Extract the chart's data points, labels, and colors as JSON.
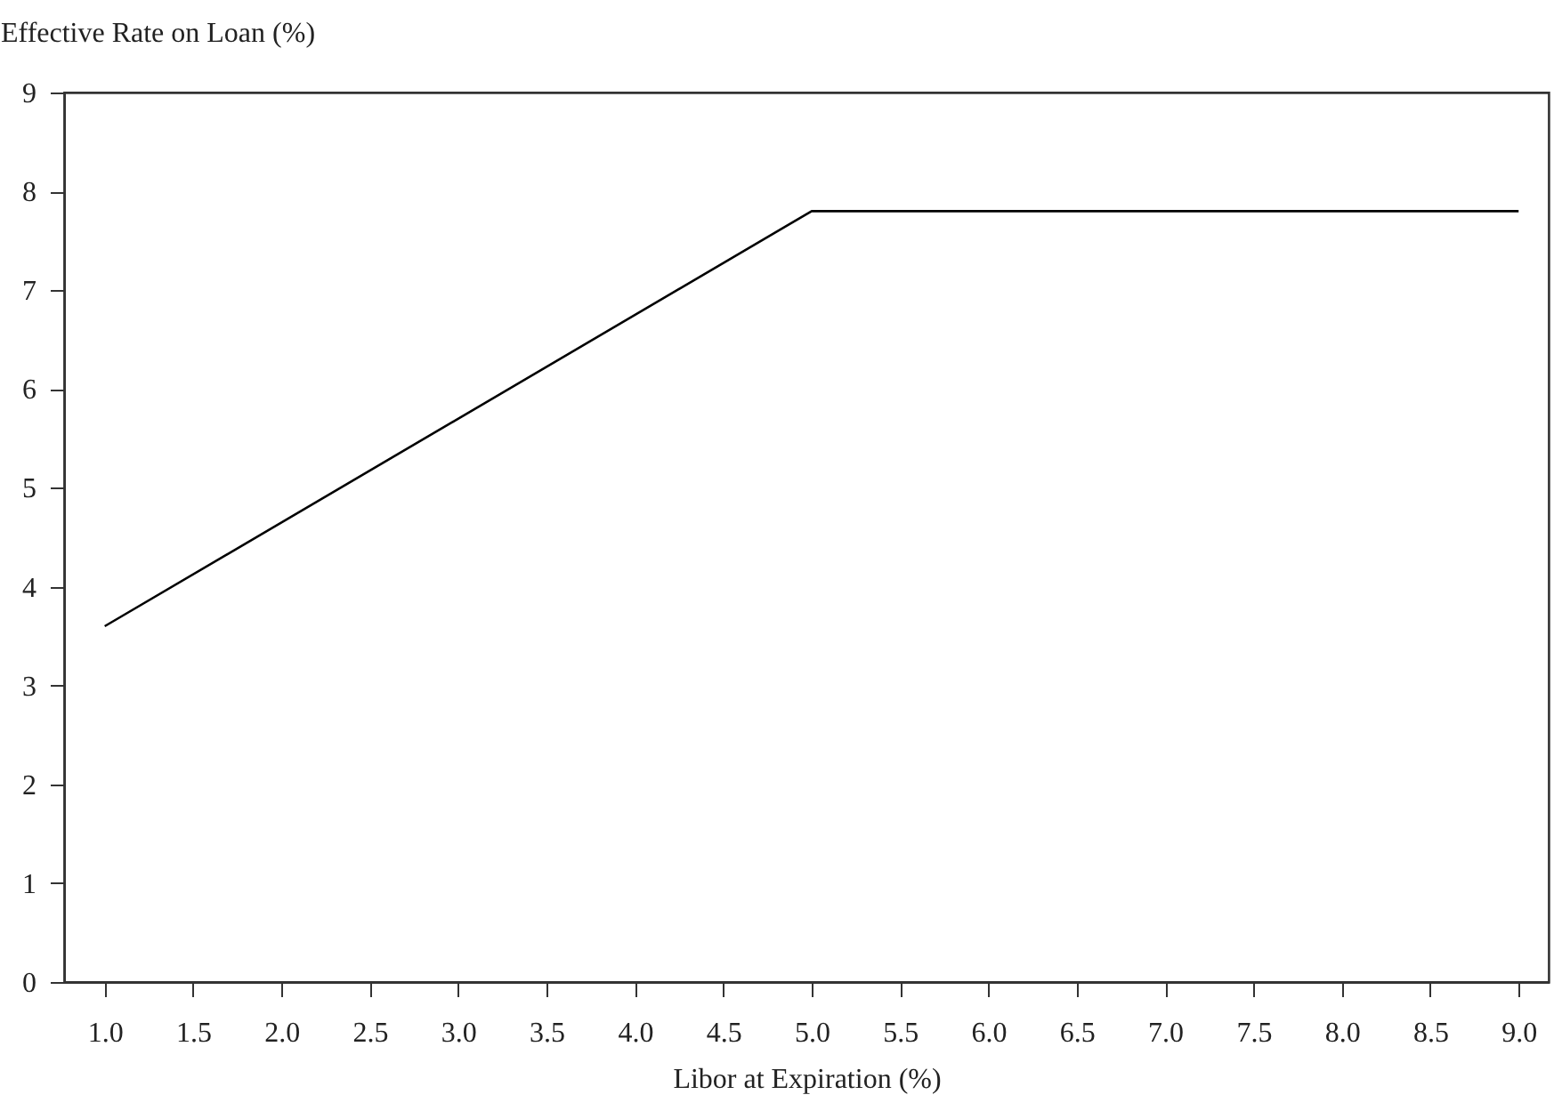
{
  "chart_data": {
    "type": "line",
    "xlabel": "Libor at Expiration (%)",
    "ylabel": "Effective Rate on Loan (%)",
    "x": [
      1.0,
      5.0,
      9.0
    ],
    "series": [
      {
        "color": "#000000",
        "values": [
          3.6,
          7.8,
          7.8
        ]
      }
    ],
    "xlim": [
      0.77,
      9.17
    ],
    "xticks": [
      {
        "value": 1.0,
        "label": "1.0"
      },
      {
        "value": 1.5,
        "label": "1.5"
      },
      {
        "value": 2.0,
        "label": "2.0"
      },
      {
        "value": 2.5,
        "label": "2.5"
      },
      {
        "value": 3.0,
        "label": "3.0"
      },
      {
        "value": 3.5,
        "label": "3.5"
      },
      {
        "value": 4.0,
        "label": "4.0"
      },
      {
        "value": 4.5,
        "label": "4.5"
      },
      {
        "value": 5.0,
        "label": "5.0"
      },
      {
        "value": 5.5,
        "label": "5.5"
      },
      {
        "value": 6.0,
        "label": "6.0"
      },
      {
        "value": 6.5,
        "label": "6.5"
      },
      {
        "value": 7.0,
        "label": "7.0"
      },
      {
        "value": 7.5,
        "label": "7.5"
      },
      {
        "value": 8.0,
        "label": "8.0"
      },
      {
        "value": 8.5,
        "label": "8.5"
      },
      {
        "value": 9.0,
        "label": "9.0"
      }
    ],
    "ylim": [
      0,
      9
    ],
    "yticks": [
      0,
      1,
      2,
      3,
      4,
      5,
      6,
      7,
      8,
      9
    ],
    "grid": false,
    "marker": "none",
    "line_style": "solid"
  }
}
